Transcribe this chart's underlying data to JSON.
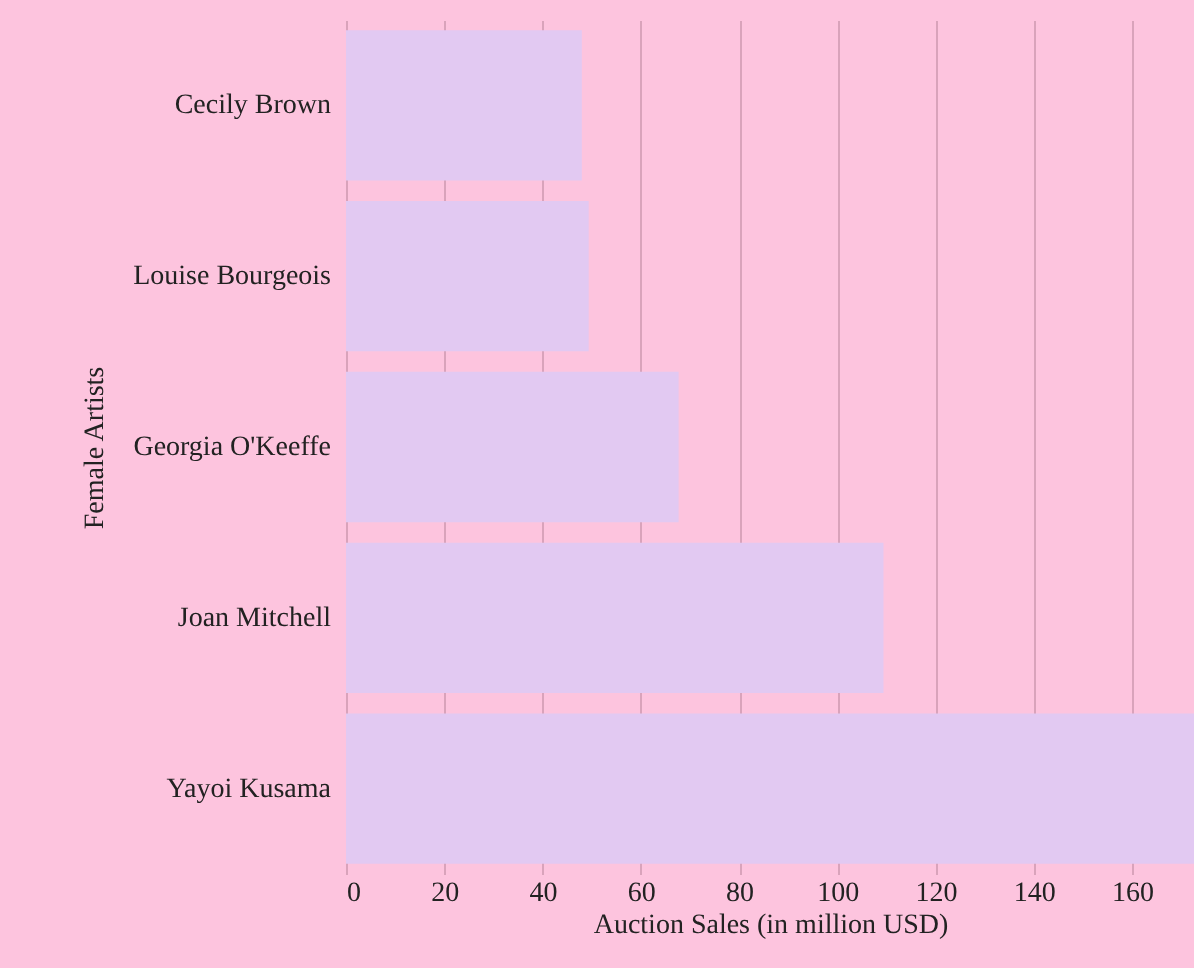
{
  "chart_data": {
    "type": "bar",
    "orientation": "horizontal",
    "xlabel": "Auction Sales (in million USD)",
    "ylabel": "Female Artists",
    "categories": [
      "Cecily Brown",
      "Louise Bourgeois",
      "Georgia O'Keeffe",
      "Joan Mitchell",
      "Yayoi Kusama"
    ],
    "values": [
      48,
      49.4,
      67.7,
      109.4,
      172.6
    ],
    "color": "#e2c9f2",
    "xlim": [
      0,
      172.6
    ],
    "xticks": [
      0,
      20,
      40,
      60,
      80,
      100,
      120,
      140,
      160
    ],
    "grid": "x"
  }
}
